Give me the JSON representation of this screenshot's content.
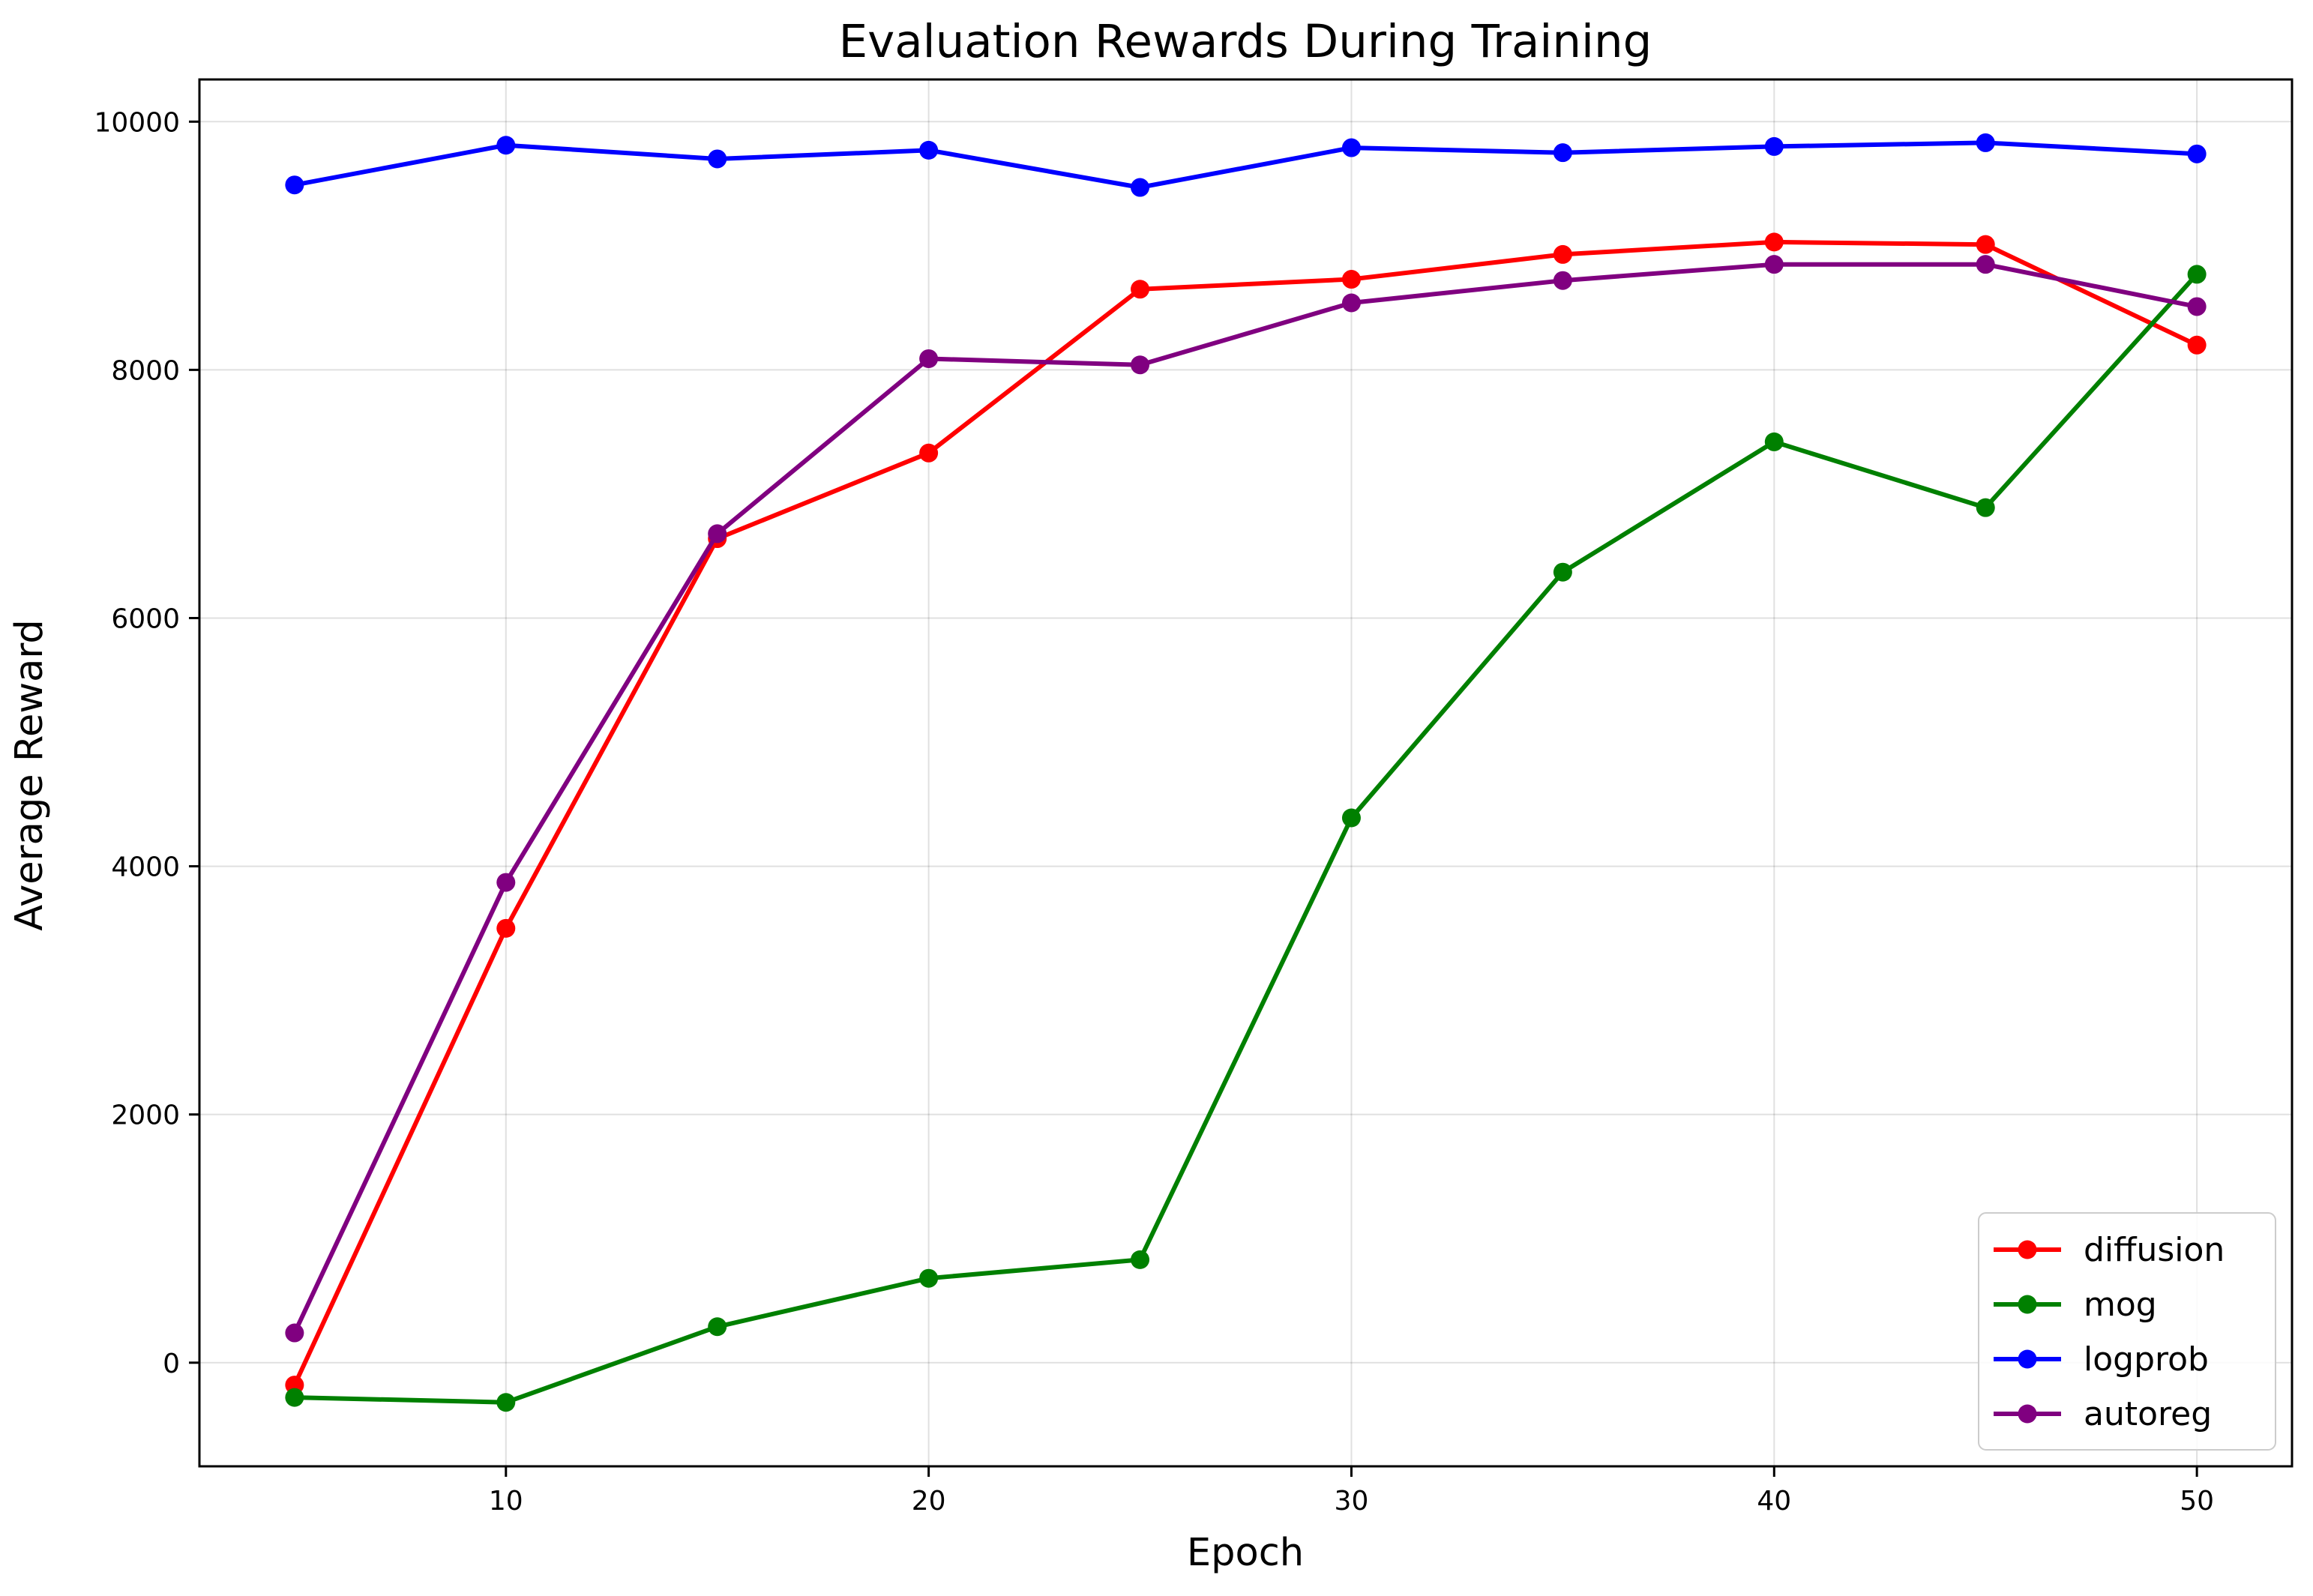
{
  "chart_data": {
    "type": "line",
    "title": "Evaluation Rewards During Training",
    "xlabel": "Epoch",
    "ylabel": "Average Reward",
    "x": [
      5,
      10,
      15,
      20,
      25,
      30,
      35,
      40,
      45,
      50
    ],
    "xlim": [
      2.75,
      52.25
    ],
    "ylim": [
      -835,
      10340
    ],
    "x_ticks": [
      10,
      20,
      30,
      40,
      50
    ],
    "x_tick_labels": [
      "10",
      "20",
      "30",
      "40",
      "50"
    ],
    "y_ticks": [
      0,
      2000,
      4000,
      6000,
      8000,
      10000
    ],
    "y_tick_labels": [
      "0",
      "2000",
      "4000",
      "6000",
      "8000",
      "10000"
    ],
    "grid": true,
    "legend_position": "lower-right",
    "series": [
      {
        "name": "diffusion",
        "color": "#ff0000",
        "marker": "circle",
        "values": [
          -180,
          3500,
          6640,
          7330,
          8650,
          8730,
          8930,
          9030,
          9010,
          8200
        ]
      },
      {
        "name": "mog",
        "color": "#008000",
        "marker": "circle",
        "values": [
          -280,
          -320,
          290,
          680,
          830,
          4390,
          6370,
          7420,
          6890,
          8770
        ]
      },
      {
        "name": "logprob",
        "color": "#0000ff",
        "marker": "circle",
        "values": [
          9490,
          9810,
          9700,
          9770,
          9470,
          9790,
          9750,
          9800,
          9830,
          9740
        ]
      },
      {
        "name": "autoreg",
        "color": "#800080",
        "marker": "circle",
        "values": [
          240,
          3870,
          6680,
          8090,
          8040,
          8540,
          8720,
          8850,
          8850,
          8510
        ]
      }
    ]
  }
}
